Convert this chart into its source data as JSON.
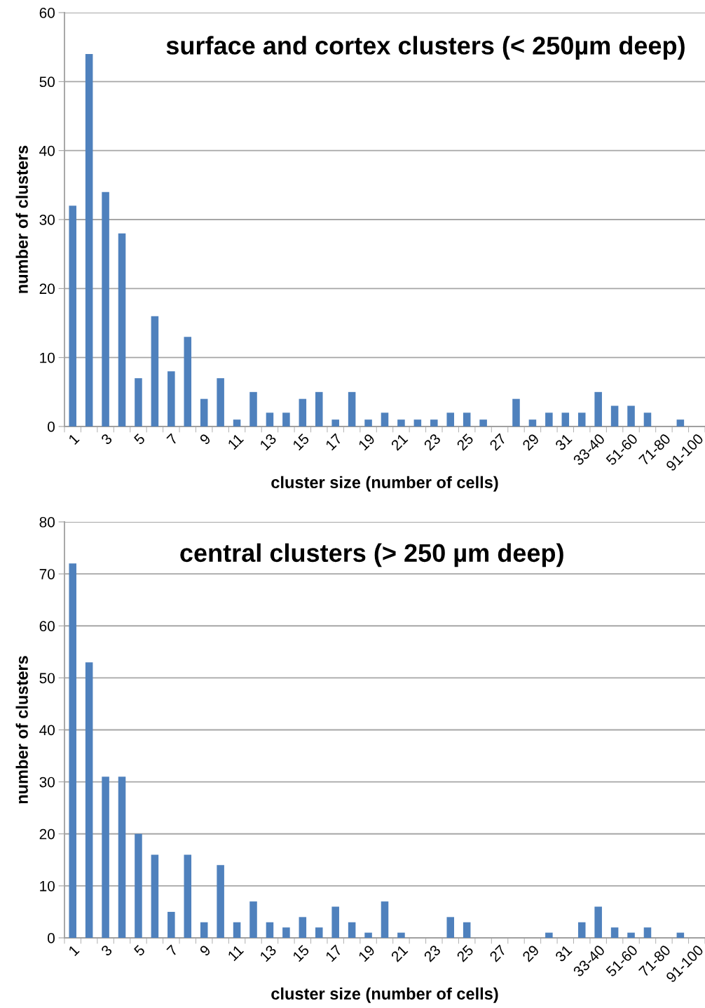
{
  "chart_data": [
    {
      "type": "bar",
      "title": "surface and cortex clusters (< 250µm deep)",
      "xlabel": "cluster size (number of cells)",
      "ylabel": "number of clusters",
      "categories": [
        "1",
        null,
        "3",
        null,
        "5",
        null,
        "7",
        null,
        "9",
        null,
        "11",
        null,
        "13",
        null,
        "15",
        null,
        "17",
        null,
        "19",
        null,
        "21",
        null,
        "23",
        null,
        "25",
        null,
        "27",
        null,
        "29",
        null,
        "31",
        null,
        "33-40",
        null,
        "51-60",
        null,
        "71-80",
        null,
        "91-100"
      ],
      "values": [
        32,
        54,
        34,
        28,
        7,
        16,
        8,
        13,
        4,
        7,
        1,
        5,
        2,
        2,
        4,
        5,
        1,
        5,
        1,
        2,
        1,
        1,
        1,
        2,
        2,
        1,
        0,
        4,
        1,
        2,
        2,
        2,
        5,
        3,
        3,
        2,
        0,
        1,
        0
      ],
      "color": "#4f81bd",
      "ylim": [
        0,
        60
      ],
      "yticks": [
        0,
        10,
        20,
        30,
        40,
        50,
        60
      ],
      "grid": "y",
      "legend": false
    },
    {
      "type": "bar",
      "title": "central clusters (> 250 µm deep)",
      "xlabel": "cluster size (number of cells)",
      "ylabel": "number of clusters",
      "categories": [
        "1",
        null,
        "3",
        null,
        "5",
        null,
        "7",
        null,
        "9",
        null,
        "11",
        null,
        "13",
        null,
        "15",
        null,
        "17",
        null,
        "19",
        null,
        "21",
        null,
        "23",
        null,
        "25",
        null,
        "27",
        null,
        "29",
        null,
        "31",
        null,
        "33-40",
        null,
        "51-60",
        null,
        "71-80",
        null,
        "91-100"
      ],
      "values": [
        72,
        53,
        31,
        31,
        20,
        16,
        5,
        16,
        3,
        14,
        3,
        7,
        3,
        2,
        4,
        2,
        6,
        3,
        1,
        7,
        1,
        0,
        0,
        4,
        3,
        0,
        0,
        0,
        0,
        1,
        0,
        3,
        6,
        2,
        1,
        2,
        0,
        1,
        0
      ],
      "color": "#4f81bd",
      "ylim": [
        0,
        80
      ],
      "yticks": [
        0,
        10,
        20,
        30,
        40,
        50,
        60,
        70,
        80
      ],
      "grid": "y",
      "legend": false
    }
  ]
}
